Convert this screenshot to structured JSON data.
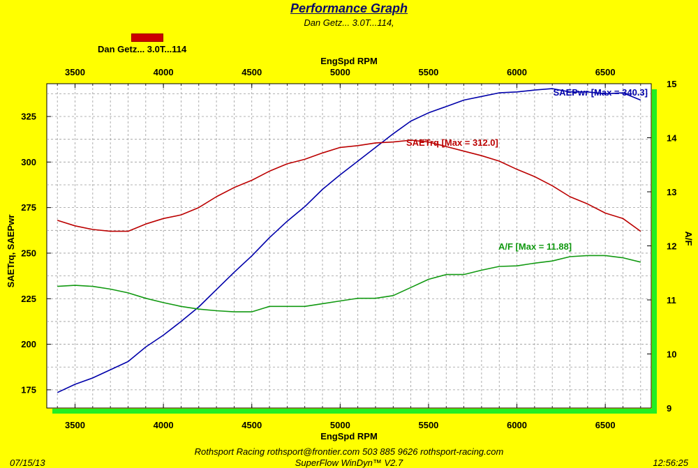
{
  "header": {
    "title": "Performance Graph",
    "subtitle": "Dan Getz... 3.0T...114,",
    "legend_label": "Dan Getz... 3.0T...114",
    "legend_color": "#cc0000"
  },
  "footer": {
    "line1": "Rothsport Racing  rothsport@frontier.com  503 885 9626 rothsport-racing.com",
    "line2": "SuperFlow WinDyn™ V2.7",
    "date": "07/15/13",
    "time": "12:56:25"
  },
  "chart_data": {
    "type": "line",
    "xlabel_top": "EngSpd  RPM",
    "xlabel_bottom": "EngSpd  RPM",
    "ylabel_left": "SAETrq, SAEPwr",
    "ylabel_right": "A/F",
    "xlim": [
      3340,
      6760
    ],
    "xticks": [
      3500,
      4000,
      4500,
      5000,
      5500,
      6000,
      6500
    ],
    "ylim_left": [
      165,
      343
    ],
    "yticks_left": [
      175,
      200,
      225,
      250,
      275,
      300,
      325
    ],
    "ylim_right": [
      9,
      15
    ],
    "yticks_right": [
      9,
      10,
      11,
      12,
      13,
      14,
      15
    ],
    "grid": true,
    "series": [
      {
        "name": "SAEPwr",
        "label": "SAEPwr [Max = 340.3]",
        "axis": "left",
        "color": "#0000aa",
        "x": [
          3400,
          3500,
          3600,
          3700,
          3800,
          3900,
          4000,
          4100,
          4200,
          4300,
          4400,
          4500,
          4600,
          4700,
          4800,
          4900,
          5000,
          5100,
          5200,
          5300,
          5400,
          5500,
          5600,
          5700,
          5800,
          5900,
          6000,
          6100,
          6200,
          6300,
          6400,
          6500,
          6600,
          6700
        ],
        "values": [
          173.5,
          178,
          181.5,
          186,
          190.5,
          198.5,
          205,
          212.5,
          220.5,
          230,
          239.5,
          248.5,
          258.5,
          267.5,
          275.5,
          285,
          293,
          300.5,
          308,
          315.5,
          322.5,
          327,
          330.5,
          334,
          336,
          338,
          338.5,
          339.5,
          340.3,
          338.5,
          338.5,
          337.5,
          338,
          334
        ]
      },
      {
        "name": "SAETrq",
        "label": "SAETrq [Max = 312.0]",
        "axis": "left",
        "color": "#bb0000",
        "x": [
          3400,
          3500,
          3600,
          3700,
          3800,
          3900,
          4000,
          4100,
          4200,
          4300,
          4400,
          4500,
          4600,
          4700,
          4800,
          4900,
          5000,
          5100,
          5200,
          5300,
          5400,
          5500,
          5600,
          5700,
          5800,
          5900,
          6000,
          6100,
          6200,
          6300,
          6400,
          6500,
          6600,
          6700
        ],
        "values": [
          268,
          265,
          263,
          262,
          262,
          266,
          269,
          271,
          275,
          281,
          286,
          290,
          295,
          299,
          301.5,
          305,
          308,
          309,
          310.5,
          311,
          312,
          311,
          308.5,
          306,
          303.5,
          300.5,
          296,
          292,
          287,
          281,
          277,
          272,
          269,
          262
        ]
      },
      {
        "name": "A/F",
        "label": "A/F  [Max = 11.88]",
        "axis": "right",
        "color": "#119911",
        "x": [
          3400,
          3500,
          3600,
          3700,
          3800,
          3900,
          4000,
          4100,
          4200,
          4300,
          4400,
          4500,
          4600,
          4700,
          4800,
          4900,
          5000,
          5100,
          5200,
          5300,
          5400,
          5500,
          5600,
          5700,
          5800,
          5900,
          6000,
          6100,
          6200,
          6300,
          6400,
          6500,
          6600,
          6700
        ],
        "values": [
          11.25,
          11.27,
          11.25,
          11.2,
          11.13,
          11.03,
          10.95,
          10.88,
          10.83,
          10.8,
          10.78,
          10.78,
          10.88,
          10.88,
          10.88,
          10.93,
          10.98,
          11.03,
          11.03,
          11.08,
          11.23,
          11.38,
          11.47,
          11.47,
          11.55,
          11.62,
          11.63,
          11.68,
          11.72,
          11.8,
          11.82,
          11.82,
          11.78,
          11.7
        ]
      }
    ]
  }
}
